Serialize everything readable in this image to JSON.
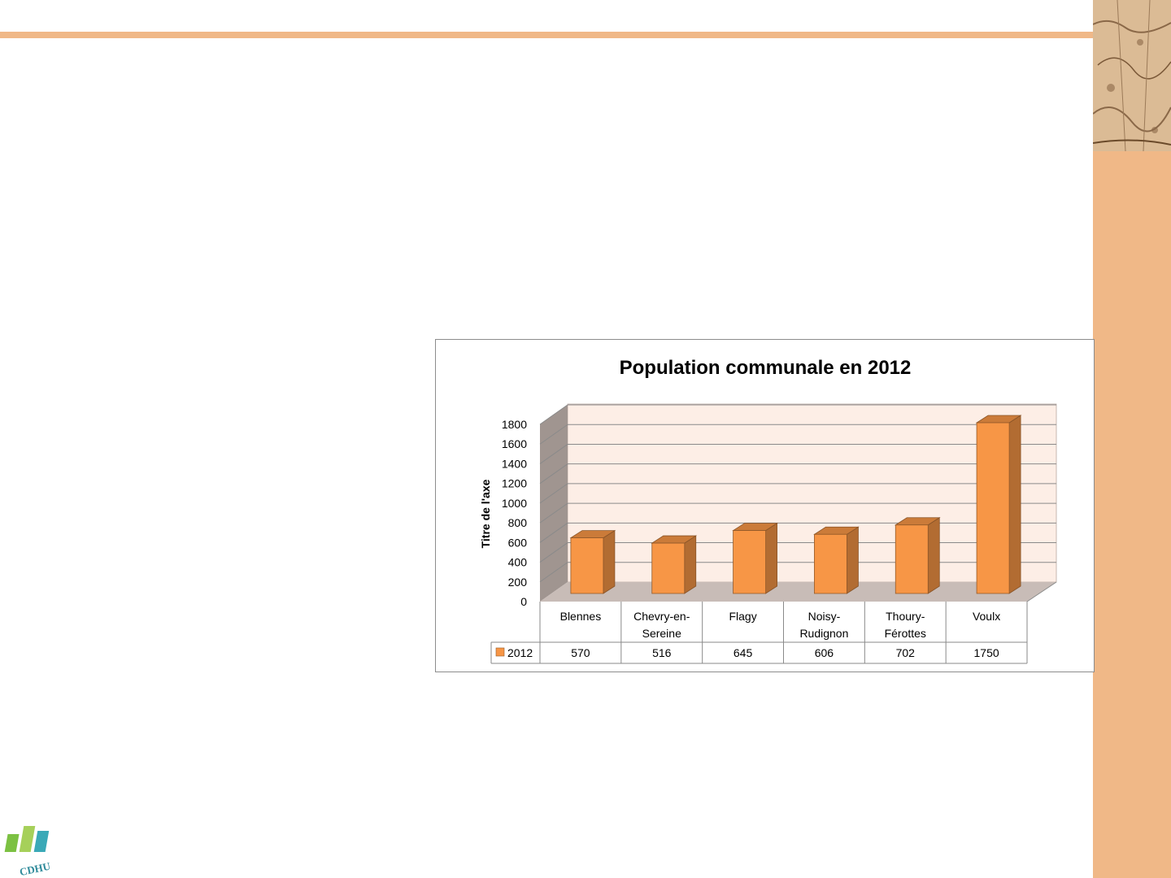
{
  "chart_data": {
    "type": "bar",
    "title": "Population communale en 2012",
    "ylabel": "Titre de l'axe",
    "xlabel": "",
    "categories": [
      [
        "Blennes"
      ],
      [
        "Chevry-en-",
        "Sereine"
      ],
      [
        "Flagy"
      ],
      [
        "Noisy-",
        "Rudignon"
      ],
      [
        "Thoury-",
        "Férottes"
      ],
      [
        "Voulx"
      ]
    ],
    "series": [
      {
        "name": "2012",
        "values": [
          570,
          516,
          645,
          606,
          702,
          1750
        ],
        "color": "#f79646"
      }
    ],
    "ylim": [
      0,
      1800
    ],
    "yticks": [
      "0",
      "200",
      "400",
      "600",
      "800",
      "1000",
      "1200",
      "1400",
      "1600",
      "1800"
    ],
    "data_table": true,
    "grid": true,
    "wall_color": "#fdeee6",
    "side_wall_color": "#a09590",
    "floor_color": "#c8bcb7"
  },
  "logo": {
    "text": "CDHU",
    "name": "cdhu-logo"
  }
}
